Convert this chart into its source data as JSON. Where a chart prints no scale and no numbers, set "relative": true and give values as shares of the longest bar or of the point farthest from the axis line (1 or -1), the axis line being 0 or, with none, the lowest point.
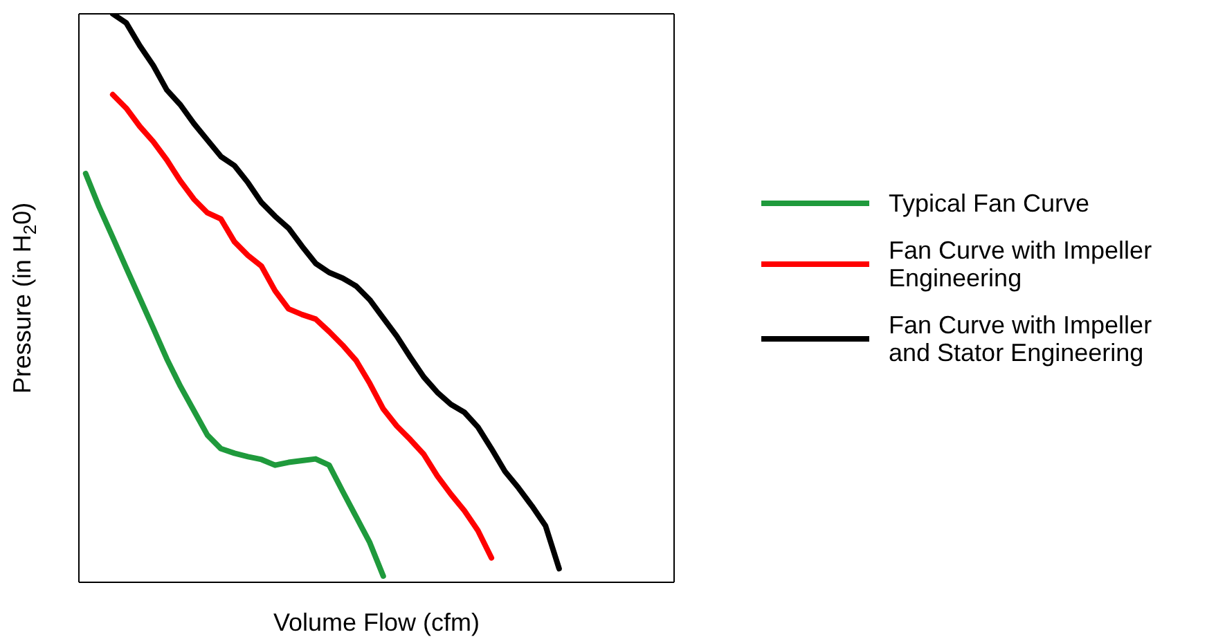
{
  "chart_data": {
    "type": "line",
    "relative": true,
    "xlabel": "Volume Flow (cfm)",
    "ylabel": "Pressure (in H$_{2}$0)",
    "legend": "right",
    "marker": "none",
    "line_style": "solid",
    "tick_labels": false,
    "categories": [
      null,
      null,
      null,
      null,
      null,
      null,
      null,
      null,
      null,
      null,
      null,
      null,
      null,
      null,
      null,
      null,
      null,
      null,
      null,
      null,
      null,
      null,
      null,
      null,
      null,
      null,
      null,
      null,
      null,
      null,
      null,
      null,
      null,
      null,
      null,
      null,
      null,
      null,
      null,
      null,
      null,
      null,
      null,
      null
    ],
    "series": [
      {
        "name": "Typical Fan Curve",
        "color": "#1f9a3c",
        "values": [
          0.719,
          0.66,
          0.607,
          0.553,
          0.5,
          0.447,
          0.393,
          0.345,
          0.302,
          0.259,
          0.235,
          0.227,
          0.221,
          0.216,
          0.206,
          0.211,
          0.214,
          0.217,
          0.206,
          0.16,
          0.115,
          0.07,
          0.011,
          null,
          null,
          null,
          null,
          null,
          null,
          null,
          null,
          null,
          null,
          null,
          null,
          null,
          null,
          null,
          null,
          null,
          null,
          null,
          null,
          null
        ]
      },
      {
        "name": "Fan Curve with Impeller Engineering",
        "color": "#ff0000",
        "values": [
          null,
          null,
          0.858,
          0.834,
          0.802,
          0.775,
          0.743,
          0.706,
          0.674,
          0.65,
          0.639,
          0.599,
          0.575,
          0.556,
          0.513,
          0.481,
          0.471,
          0.463,
          0.441,
          0.417,
          0.39,
          0.35,
          0.305,
          0.275,
          0.251,
          0.225,
          0.187,
          0.155,
          0.126,
          0.091,
          0.043,
          null,
          null,
          null,
          null,
          null,
          null,
          null,
          null,
          null,
          null,
          null,
          null,
          null
        ]
      },
      {
        "name": "Fan Curve with Impeller and Stator Engineering",
        "color": "#000000",
        "values": [
          null,
          null,
          1,
          0.984,
          0.944,
          0.909,
          0.866,
          0.84,
          0.807,
          0.778,
          0.749,
          0.733,
          0.703,
          0.668,
          0.644,
          0.623,
          0.591,
          0.561,
          0.545,
          0.535,
          0.521,
          0.497,
          0.465,
          0.433,
          0.396,
          0.361,
          0.334,
          0.313,
          0.299,
          0.273,
          0.235,
          0.195,
          0.166,
          0.134,
          0.099,
          0.024,
          null,
          null,
          null,
          null,
          null,
          null,
          null,
          null
        ]
      }
    ]
  }
}
